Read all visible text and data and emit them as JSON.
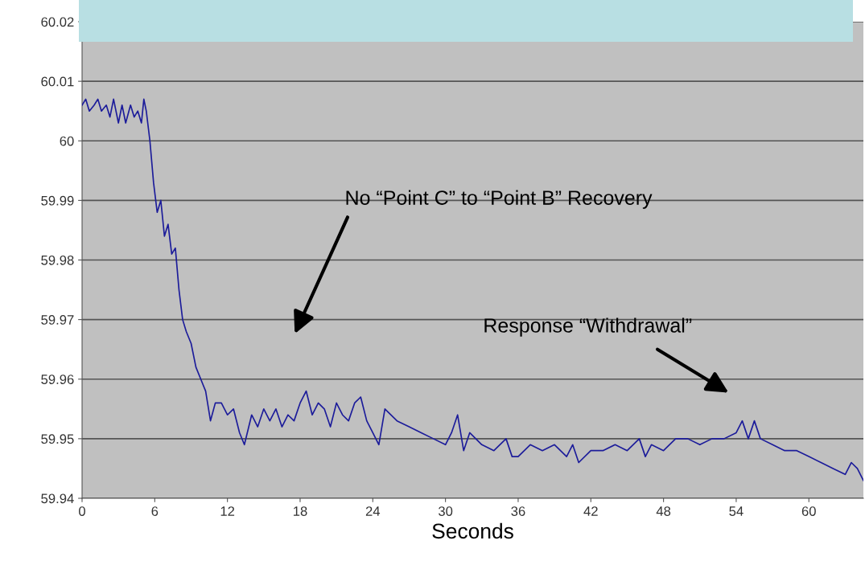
{
  "chart_data": {
    "type": "line",
    "xlabel": "Seconds",
    "x": [
      0,
      0.3,
      0.6,
      1,
      1.3,
      1.6,
      2,
      2.3,
      2.6,
      3,
      3.3,
      3.6,
      4,
      4.3,
      4.6,
      4.9,
      5.1,
      5.3,
      5.6,
      5.9,
      6.2,
      6.5,
      6.8,
      7.1,
      7.4,
      7.7,
      8,
      8.3,
      8.6,
      9,
      9.4,
      9.8,
      10.2,
      10.6,
      11,
      11.5,
      12,
      12.5,
      13,
      13.4,
      14,
      14.5,
      15,
      15.5,
      16,
      16.5,
      17,
      17.5,
      18,
      18.5,
      19,
      19.5,
      20,
      20.5,
      21,
      21.5,
      22,
      22.5,
      23,
      23.5,
      24,
      24.5,
      25,
      26,
      27,
      28,
      29,
      30,
      30.5,
      31,
      31.5,
      32,
      33,
      34,
      35,
      35.5,
      36,
      37,
      38,
      39,
      40,
      40.5,
      41,
      42,
      43,
      44,
      45,
      46,
      46.5,
      47,
      48,
      49,
      50,
      51,
      52,
      53,
      54,
      54.5,
      55,
      55.5,
      56,
      57,
      58,
      59,
      60,
      61,
      62,
      63,
      63.5,
      64,
      64.5
    ],
    "series": [
      {
        "color": "#1c1c9a",
        "values": [
          60.006,
          60.007,
          60.005,
          60.006,
          60.007,
          60.005,
          60.006,
          60.004,
          60.007,
          60.003,
          60.006,
          60.003,
          60.006,
          60.004,
          60.005,
          60.003,
          60.007,
          60.005,
          60.0,
          59.993,
          59.988,
          59.99,
          59.984,
          59.986,
          59.981,
          59.982,
          59.975,
          59.97,
          59.968,
          59.966,
          59.962,
          59.96,
          59.958,
          59.953,
          59.956,
          59.956,
          59.954,
          59.955,
          59.951,
          59.949,
          59.954,
          59.952,
          59.955,
          59.953,
          59.955,
          59.952,
          59.954,
          59.953,
          59.956,
          59.958,
          59.954,
          59.956,
          59.955,
          59.952,
          59.956,
          59.954,
          59.953,
          59.956,
          59.957,
          59.953,
          59.951,
          59.949,
          59.955,
          59.953,
          59.952,
          59.951,
          59.95,
          59.949,
          59.951,
          59.954,
          59.948,
          59.951,
          59.949,
          59.948,
          59.95,
          59.947,
          59.947,
          59.949,
          59.948,
          59.949,
          59.947,
          59.949,
          59.946,
          59.948,
          59.948,
          59.949,
          59.948,
          59.95,
          59.947,
          59.949,
          59.948,
          59.95,
          59.95,
          59.949,
          59.95,
          59.95,
          59.951,
          59.953,
          59.95,
          59.953,
          59.95,
          59.949,
          59.948,
          59.948,
          59.947,
          59.946,
          59.945,
          59.944,
          59.946,
          59.945,
          59.943
        ]
      }
    ],
    "xlim": [
      0,
      64.5
    ],
    "xticks": [
      0,
      6,
      12,
      18,
      24,
      30,
      36,
      42,
      48,
      54,
      60
    ],
    "ylim": [
      59.94,
      60.02
    ],
    "yticks": [
      {
        "value": 59.94,
        "label": "59.94"
      },
      {
        "value": 59.95,
        "label": "59.95"
      },
      {
        "value": 59.96,
        "label": "59.96"
      },
      {
        "value": 59.97,
        "label": "59.97"
      },
      {
        "value": 59.98,
        "label": "59.98"
      },
      {
        "value": 59.99,
        "label": "59.99"
      },
      {
        "value": 60,
        "label": "60"
      },
      {
        "value": 60.01,
        "label": "60.01"
      },
      {
        "value": 60.02,
        "label": "60.02"
      }
    ],
    "grid": "y",
    "marker": "none",
    "line_style": "solid",
    "legend": false,
    "annotations": [
      "No “Point C” to “Point B” Recovery",
      "Response “Withdrawal”"
    ]
  }
}
